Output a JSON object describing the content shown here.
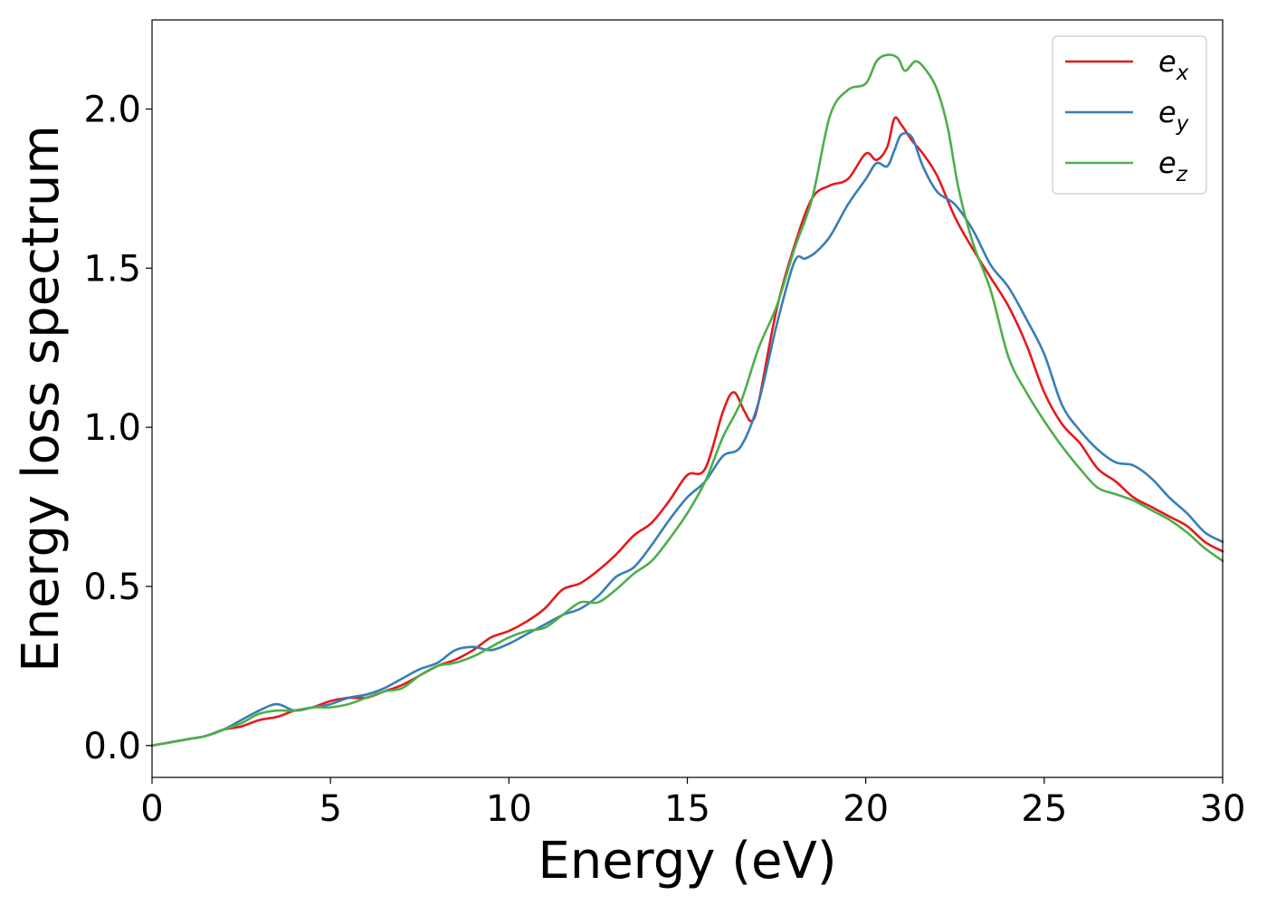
{
  "chart_data": {
    "type": "line",
    "xlabel": "Energy (eV)",
    "ylabel": "Energy loss spectrum",
    "xlim": [
      0,
      30
    ],
    "ylim": [
      -0.1,
      2.28
    ],
    "xticks": [
      0,
      5,
      10,
      15,
      20,
      25,
      30
    ],
    "yticks": [
      0.0,
      0.5,
      1.0,
      1.5,
      2.0
    ],
    "xtick_labels": [
      "0",
      "5",
      "10",
      "15",
      "20",
      "25",
      "30"
    ],
    "ytick_labels": [
      "0.0",
      "0.5",
      "1.0",
      "1.5",
      "2.0"
    ],
    "grid": false,
    "legend_position": "top-right",
    "series": [
      {
        "name": "e",
        "subscript": "x",
        "color": "#e41a1c",
        "x": [
          0,
          0.5,
          1,
          1.5,
          2,
          2.5,
          3,
          3.5,
          4,
          4.5,
          5,
          5.5,
          6,
          6.5,
          7,
          7.5,
          8,
          8.5,
          9,
          9.5,
          10,
          10.5,
          11,
          11.5,
          12,
          12.5,
          13,
          13.5,
          14,
          14.5,
          15,
          15.5,
          16,
          16.3,
          16.6,
          16.8,
          17,
          17.5,
          18,
          18.5,
          19,
          19.5,
          20,
          20.3,
          20.6,
          20.8,
          21,
          21.3,
          21.6,
          22,
          22.5,
          23,
          23.5,
          24,
          24.5,
          25,
          25.5,
          26,
          26.5,
          27,
          27.5,
          28,
          28.5,
          29,
          29.5,
          30
        ],
        "y": [
          0,
          0.01,
          0.02,
          0.03,
          0.05,
          0.06,
          0.08,
          0.09,
          0.11,
          0.12,
          0.14,
          0.15,
          0.15,
          0.17,
          0.19,
          0.22,
          0.25,
          0.27,
          0.3,
          0.34,
          0.36,
          0.39,
          0.43,
          0.49,
          0.51,
          0.55,
          0.6,
          0.66,
          0.7,
          0.77,
          0.85,
          0.87,
          1.05,
          1.11,
          1.05,
          1.02,
          1.08,
          1.37,
          1.57,
          1.72,
          1.76,
          1.78,
          1.86,
          1.84,
          1.88,
          1.97,
          1.95,
          1.9,
          1.86,
          1.79,
          1.66,
          1.56,
          1.47,
          1.38,
          1.26,
          1.11,
          1.01,
          0.95,
          0.87,
          0.83,
          0.78,
          0.75,
          0.72,
          0.69,
          0.64,
          0.61
        ]
      },
      {
        "name": "e",
        "subscript": "y",
        "color": "#377eb8",
        "x": [
          0,
          0.5,
          1,
          1.5,
          2,
          2.5,
          3,
          3.5,
          4,
          4.5,
          5,
          5.5,
          6,
          6.5,
          7,
          7.5,
          8,
          8.5,
          9,
          9.5,
          10,
          10.5,
          11,
          11.5,
          12,
          12.5,
          13,
          13.5,
          14,
          14.5,
          15,
          15.5,
          16,
          16.5,
          17,
          17.5,
          18,
          18.3,
          18.6,
          19,
          19.5,
          20,
          20.3,
          20.6,
          20.8,
          21,
          21.3,
          21.6,
          22,
          22.5,
          23,
          23.5,
          24,
          24.5,
          25,
          25.5,
          26,
          26.5,
          27,
          27.5,
          28,
          28.5,
          29,
          29.5,
          30
        ],
        "y": [
          0,
          0.01,
          0.02,
          0.03,
          0.05,
          0.08,
          0.11,
          0.13,
          0.11,
          0.12,
          0.13,
          0.15,
          0.16,
          0.18,
          0.21,
          0.24,
          0.26,
          0.3,
          0.31,
          0.3,
          0.32,
          0.35,
          0.38,
          0.41,
          0.43,
          0.47,
          0.53,
          0.56,
          0.63,
          0.71,
          0.78,
          0.83,
          0.91,
          0.94,
          1.08,
          1.32,
          1.52,
          1.53,
          1.55,
          1.6,
          1.7,
          1.78,
          1.83,
          1.82,
          1.87,
          1.92,
          1.91,
          1.82,
          1.74,
          1.7,
          1.62,
          1.51,
          1.44,
          1.34,
          1.23,
          1.07,
          0.99,
          0.93,
          0.89,
          0.88,
          0.84,
          0.78,
          0.73,
          0.67,
          0.64
        ]
      },
      {
        "name": "e",
        "subscript": "z",
        "color": "#4daf4a",
        "x": [
          0,
          0.5,
          1,
          1.5,
          2,
          2.5,
          3,
          3.5,
          4,
          4.5,
          5,
          5.5,
          6,
          6.5,
          7,
          7.5,
          8,
          8.5,
          9,
          9.5,
          10,
          10.5,
          11,
          11.5,
          12,
          12.5,
          13,
          13.5,
          14,
          14.5,
          15,
          15.5,
          16,
          16.5,
          17,
          17.5,
          18,
          18.5,
          19,
          19.5,
          20,
          20.3,
          20.6,
          20.9,
          21.1,
          21.4,
          21.7,
          22,
          22.3,
          22.6,
          23,
          23.5,
          24,
          24.5,
          25,
          25.5,
          26,
          26.5,
          27,
          27.5,
          28,
          28.5,
          29,
          29.5,
          30
        ],
        "y": [
          0,
          0.01,
          0.02,
          0.03,
          0.05,
          0.07,
          0.1,
          0.11,
          0.11,
          0.12,
          0.12,
          0.13,
          0.15,
          0.17,
          0.18,
          0.22,
          0.25,
          0.26,
          0.28,
          0.31,
          0.34,
          0.36,
          0.37,
          0.41,
          0.45,
          0.45,
          0.49,
          0.54,
          0.58,
          0.65,
          0.73,
          0.83,
          0.97,
          1.08,
          1.25,
          1.38,
          1.56,
          1.72,
          1.98,
          2.06,
          2.08,
          2.15,
          2.17,
          2.16,
          2.12,
          2.15,
          2.12,
          2.06,
          1.94,
          1.75,
          1.58,
          1.43,
          1.22,
          1.11,
          1.02,
          0.94,
          0.87,
          0.81,
          0.79,
          0.77,
          0.74,
          0.71,
          0.67,
          0.62,
          0.58
        ]
      }
    ]
  }
}
